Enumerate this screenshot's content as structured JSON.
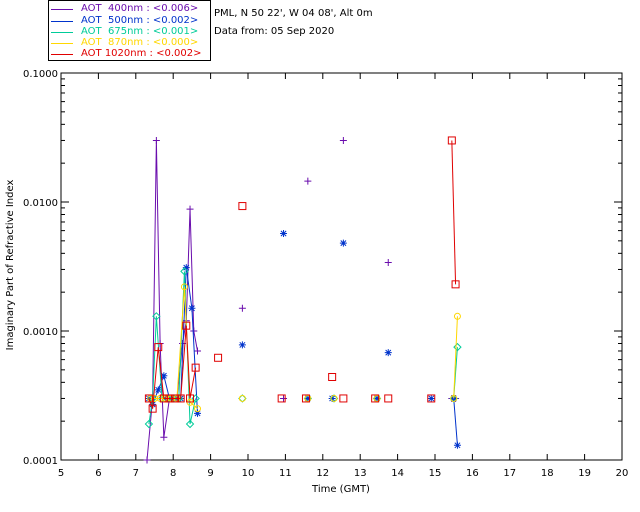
{
  "header": {
    "site": "PML, N 50 22', W 04 08', Alt 0m",
    "date": "Data from: 05 Sep 2020"
  },
  "legend": [
    {
      "text": "AOT  400nm : <0.006>",
      "color": "#6a0dad"
    },
    {
      "text": "AOT  500nm : <0.002>",
      "color": "#0033cc"
    },
    {
      "text": "AOT  675nm : <0.001>",
      "color": "#00cc99"
    },
    {
      "text": "AOT  870nm : <0.000>",
      "color": "#ffd700"
    },
    {
      "text": "AOT 1020nm : <0.002>",
      "color": "#e00000"
    }
  ],
  "chart_data": {
    "type": "line",
    "xlabel": "Time (GMT)",
    "ylabel": "Imaginary Part of Refractive Index",
    "xlim": [
      5,
      20
    ],
    "ylim": [
      0.0001,
      0.1
    ],
    "yscale": "log",
    "xticks": [
      "5",
      "6",
      "7",
      "8",
      "9",
      "10",
      "11",
      "12",
      "13",
      "14",
      "15",
      "16",
      "17",
      "18",
      "19",
      "20"
    ],
    "yticks": [
      "0.0001",
      "0.0010",
      "0.0100",
      "0.1000"
    ],
    "series": [
      {
        "name": "AOT  400nm : <0.006>",
        "color": "#6a0dad",
        "marker": "plus",
        "x": [
          7.3,
          7.45,
          7.55,
          7.65,
          7.75,
          7.9,
          8.0,
          8.1,
          8.25,
          8.35,
          8.45,
          8.55,
          8.65,
          9.85,
          10.95,
          11.6,
          12.55,
          13.75,
          15.45,
          15.55
        ],
        "y": [
          0.0001,
          0.0003,
          0.03,
          0.0008,
          0.00015,
          0.0003,
          0.0003,
          0.0003,
          0.0008,
          0.0012,
          0.0088,
          0.001,
          0.0007,
          0.0015,
          0.0003,
          0.0145,
          0.03,
          0.0034,
          0.0003,
          0.0003
        ],
        "connect": [
          0,
          13
        ]
      },
      {
        "name": "AOT  500nm : <0.002>",
        "color": "#0033cc",
        "marker": "asterisk",
        "x": [
          7.35,
          7.45,
          7.6,
          7.75,
          7.9,
          8.0,
          8.1,
          8.2,
          8.35,
          8.5,
          8.65,
          9.85,
          10.95,
          11.6,
          12.25,
          12.55,
          13.45,
          13.75,
          14.9,
          15.5,
          15.6
        ],
        "y": [
          0.0003,
          0.00027,
          0.00035,
          0.00045,
          0.0003,
          0.0003,
          0.0003,
          0.0003,
          0.0031,
          0.0015,
          0.00023,
          0.00078,
          0.0057,
          0.0003,
          0.0003,
          0.0048,
          0.0003,
          0.00068,
          0.0003,
          0.0003,
          0.00013
        ],
        "connect": [
          0,
          11,
          19,
          21
        ]
      },
      {
        "name": "AOT  675nm : <0.001>",
        "color": "#00cc99",
        "marker": "diamond",
        "x": [
          7.35,
          7.45,
          7.55,
          7.7,
          7.85,
          8.0,
          8.15,
          8.3,
          8.45,
          8.6,
          9.85,
          11.6,
          12.3,
          13.45,
          15.5,
          15.6
        ],
        "y": [
          0.00019,
          0.0003,
          0.0013,
          0.0003,
          0.0003,
          0.0003,
          0.0003,
          0.0029,
          0.00019,
          0.0003,
          0.0003,
          0.0003,
          0.0003,
          0.0003,
          0.0003,
          0.00075
        ],
        "connect": [
          0,
          10,
          14,
          16
        ]
      },
      {
        "name": "AOT  870nm : <0.000>",
        "color": "#ffd700",
        "marker": "circle",
        "x": [
          7.4,
          7.5,
          7.65,
          7.8,
          7.95,
          8.1,
          8.3,
          8.45,
          8.65,
          9.85,
          11.6,
          12.3,
          13.45,
          15.5,
          15.6
        ],
        "y": [
          0.0003,
          0.0003,
          0.0003,
          0.0003,
          0.0003,
          0.0003,
          0.0022,
          0.00028,
          0.00025,
          0.0003,
          0.0003,
          0.0003,
          0.0003,
          0.0003,
          0.0013
        ],
        "connect": [
          0,
          9,
          13,
          15
        ]
      },
      {
        "name": "AOT 1020nm : <0.002>",
        "color": "#e00000",
        "marker": "square",
        "x": [
          7.35,
          7.45,
          7.6,
          7.75,
          7.9,
          8.05,
          8.2,
          8.35,
          8.45,
          8.6,
          9.2,
          9.85,
          10.9,
          11.55,
          12.25,
          12.55,
          13.4,
          13.75,
          14.9,
          15.45,
          15.55
        ],
        "y": [
          0.0003,
          0.00025,
          0.00075,
          0.0003,
          0.0003,
          0.0003,
          0.0003,
          0.0011,
          0.0003,
          0.00052,
          0.00062,
          0.0093,
          0.0003,
          0.0003,
          0.00044,
          0.0003,
          0.0003,
          0.0003,
          0.0003,
          0.03,
          0.0023
        ],
        "connect": [
          0,
          10,
          19,
          21
        ]
      }
    ]
  }
}
